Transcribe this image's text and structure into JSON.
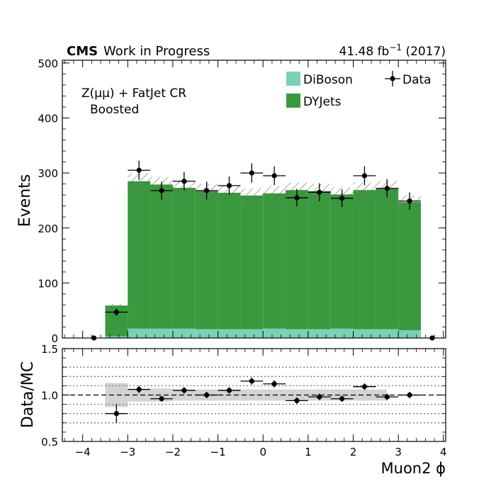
{
  "header": {
    "experiment": "CMS",
    "status": "Work in Progress",
    "lumi": "41.48 fb",
    "lumi_exp": "−1",
    "year": "(2017)"
  },
  "annotation": {
    "line1": "Z(μμ) + FatJet CR",
    "line2": "Boosted"
  },
  "colors": {
    "diboson": "#7bd1b5",
    "dyjets": "#3a993e",
    "data": "#000000",
    "unc_band": "#d3d3d3"
  },
  "chart_data": [
    {
      "type": "bar",
      "stacked": true,
      "title": "",
      "xlabel": "",
      "ylabel": "Events",
      "xlim": [
        -4.45,
        4.05
      ],
      "ylim": [
        0,
        505
      ],
      "yticks": [
        0,
        100,
        200,
        300,
        400,
        500
      ],
      "bin_edges": [
        -4.0,
        -3.5,
        -3.0,
        -2.5,
        -2.0,
        -1.5,
        -1.0,
        -0.5,
        0.0,
        0.5,
        1.0,
        1.5,
        2.0,
        2.5,
        3.0,
        3.5,
        4.0
      ],
      "series": [
        {
          "name": "DiBoson",
          "color_key": "diboson",
          "values": [
            0,
            3,
            17,
            17,
            17,
            16,
            16,
            16,
            17,
            16,
            16,
            17,
            16,
            16,
            14,
            0
          ]
        },
        {
          "name": "DYJets",
          "color_key": "dyjets",
          "values": [
            0,
            56,
            268,
            262,
            256,
            251,
            248,
            243,
            246,
            253,
            251,
            244,
            253,
            256,
            233,
            0
          ]
        }
      ],
      "mc_unc_frac": 0.05,
      "data_series": {
        "name": "Data",
        "x": [
          -3.75,
          -3.25,
          -2.75,
          -2.25,
          -1.75,
          -1.25,
          -0.75,
          -0.25,
          0.25,
          0.75,
          1.25,
          1.75,
          2.25,
          2.75,
          3.25,
          3.75
        ],
        "y": [
          0,
          47,
          305,
          268,
          285,
          268,
          277,
          300,
          295,
          255,
          265,
          254,
          295,
          272,
          249,
          0
        ]
      },
      "legend": {
        "placement": "top-right",
        "entries": [
          "DiBoson",
          "DYJets",
          "Data"
        ]
      }
    },
    {
      "type": "scatter",
      "title": "",
      "xlabel": "Muon2 ϕ",
      "ylabel": "Data/MC",
      "xlim": [
        -4.45,
        4.05
      ],
      "ylim": [
        0.5,
        1.5
      ],
      "yticks": [
        0.5,
        1.0,
        1.5
      ],
      "ytick_labels": [
        "0.5",
        "1.0",
        "1.5"
      ],
      "xticks": [
        -4,
        -3,
        -2,
        -1,
        0,
        1,
        2,
        3,
        4
      ],
      "xtick_labels": [
        "−4",
        "−3",
        "−2",
        "−1",
        "0",
        "1",
        "2",
        "3",
        "4"
      ],
      "dotted_grid": [
        0.7,
        0.8,
        0.9,
        1.1,
        1.2,
        1.3
      ],
      "reference_line": 1.0,
      "x": [
        -3.25,
        -2.75,
        -2.25,
        -1.75,
        -1.25,
        -0.75,
        -0.25,
        0.25,
        0.75,
        1.25,
        1.75,
        2.25,
        2.75,
        3.25
      ],
      "y": [
        0.8,
        1.06,
        0.96,
        1.05,
        1.0,
        1.05,
        1.15,
        1.12,
        0.94,
        0.98,
        0.96,
        1.09,
        0.98,
        1.0
      ],
      "yerr": [
        0.1,
        0.04,
        0.03,
        0.035,
        0.035,
        0.035,
        0.04,
        0.04,
        0.035,
        0.035,
        0.035,
        0.035,
        0.035,
        0.035
      ],
      "unc_band": {
        "x_range": [
          -3.5,
          2.75
        ],
        "half_width": [
          0.13,
          0.07,
          0.07,
          0.06,
          0.06,
          0.06,
          0.06,
          0.06,
          0.06,
          0.06,
          0.06,
          0.06,
          0.06
        ]
      }
    }
  ]
}
